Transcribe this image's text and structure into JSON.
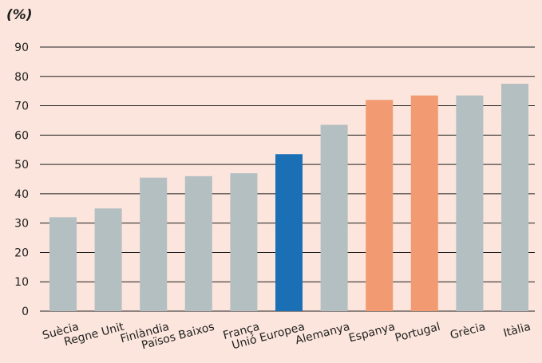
{
  "chart_data": {
    "type": "bar",
    "title": "",
    "ylabel": "(%)",
    "xlabel": "",
    "ylim": [
      0,
      90
    ],
    "yticks": [
      0,
      10,
      20,
      30,
      40,
      50,
      60,
      70,
      80,
      90
    ],
    "grid": true,
    "categories": [
      "Suècia",
      "Regne Unit",
      "Finlàndia",
      "Països Baixos",
      "França",
      "Unió Europea",
      "Alemanya",
      "Espanya",
      "Portugal",
      "Grècia",
      "Itàlia"
    ],
    "values": [
      32,
      35,
      45.5,
      46,
      47,
      53.5,
      63.5,
      72,
      73.5,
      73.5,
      77.5
    ],
    "colors": [
      "#b4bfc2",
      "#b4bfc2",
      "#b4bfc2",
      "#b4bfc2",
      "#b4bfc2",
      "#1a6fb5",
      "#b4bfc2",
      "#f29b72",
      "#f29b72",
      "#b4bfc2",
      "#b4bfc2"
    ]
  }
}
